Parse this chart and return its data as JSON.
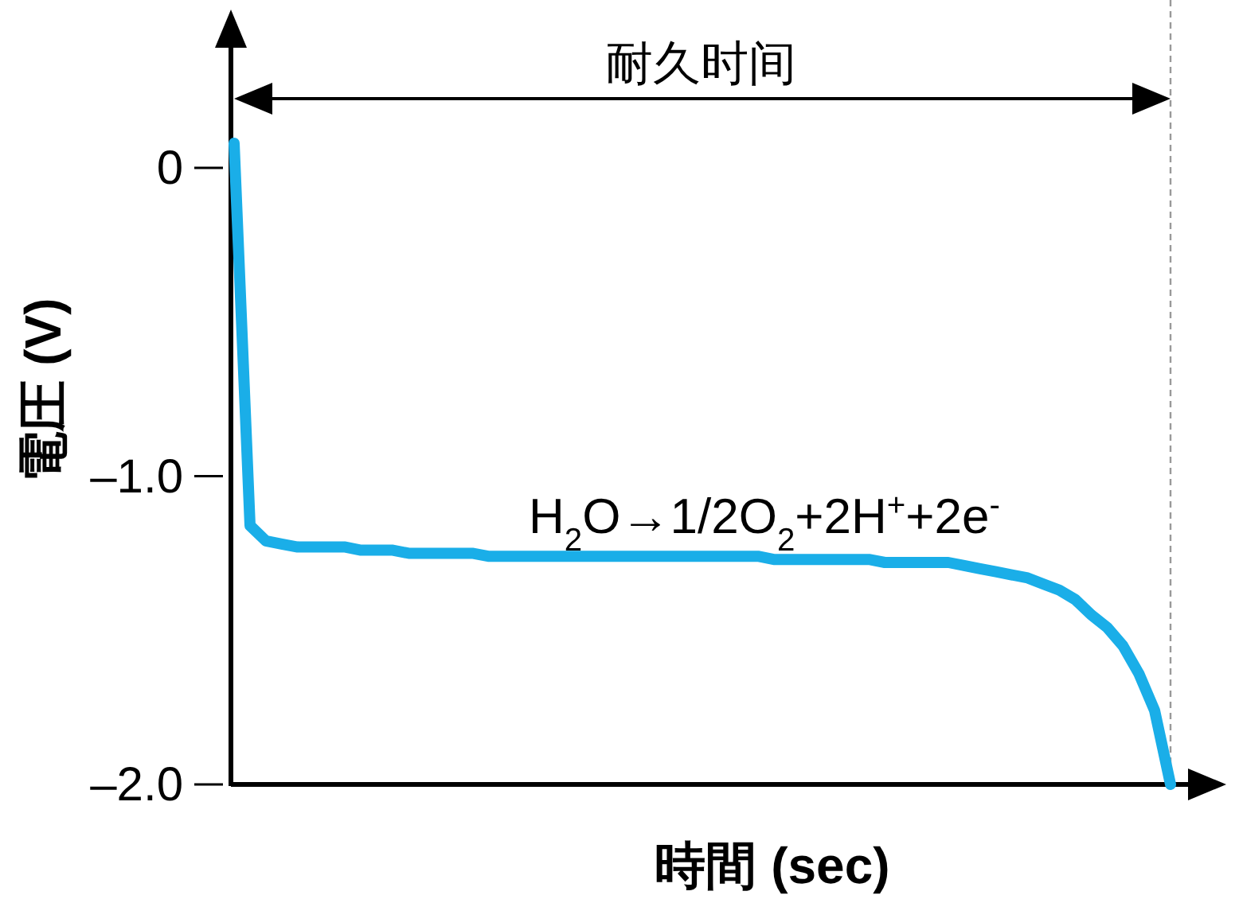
{
  "chart_data": {
    "type": "line",
    "xlabel": "時間 (sec)",
    "ylabel": "電圧 (V)",
    "annotations": [
      "耐久时间",
      "H$_{2}$O→1/2O$_{2}$+2H$^{+}$+2e$^{-}$"
    ],
    "categories": [
      null,
      null,
      null,
      null,
      null,
      null,
      null,
      null,
      null,
      null,
      null,
      null,
      null,
      null,
      null,
      null,
      null,
      null,
      null,
      null,
      null,
      null,
      null,
      null,
      null,
      null,
      null,
      null,
      null,
      null,
      null,
      null,
      null,
      null,
      null,
      null,
      null,
      null,
      null,
      null,
      null,
      null,
      null,
      null,
      null,
      null,
      null,
      null,
      null,
      null,
      null,
      null,
      null,
      null,
      null,
      null,
      null,
      null,
      null,
      null
    ],
    "series": [
      {
        "color": "#1aaee8",
        "values": [
          0.08,
          -1.16,
          -1.21,
          -1.22,
          -1.23,
          -1.23,
          -1.23,
          -1.23,
          -1.24,
          -1.24,
          -1.24,
          -1.25,
          -1.25,
          -1.25,
          -1.25,
          -1.25,
          -1.26,
          -1.26,
          -1.26,
          -1.26,
          -1.26,
          -1.26,
          -1.26,
          -1.26,
          -1.26,
          -1.26,
          -1.26,
          -1.26,
          -1.26,
          -1.26,
          -1.26,
          -1.26,
          -1.26,
          -1.26,
          -1.27,
          -1.27,
          -1.27,
          -1.27,
          -1.27,
          -1.27,
          -1.27,
          -1.28,
          -1.28,
          -1.28,
          -1.28,
          -1.28,
          -1.29,
          -1.3,
          -1.31,
          -1.32,
          -1.33,
          -1.35,
          -1.37,
          -1.4,
          -1.45,
          -1.49,
          -1.55,
          -1.64,
          -1.76,
          -2.0
        ]
      }
    ],
    "ylim": [
      -2.0,
      0.4
    ],
    "yticks": [
      0,
      {
        "value": -1.0,
        "label": "–1.0"
      },
      {
        "value": -2.0,
        "label": "–2.0"
      }
    ],
    "tick_labels": "y"
  }
}
